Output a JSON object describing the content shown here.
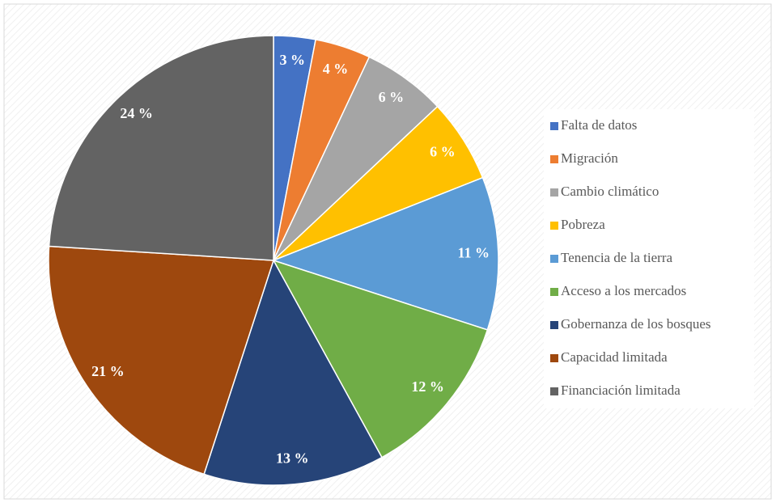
{
  "chart_data": {
    "type": "pie",
    "categories": [
      "Falta de datos",
      "Migración",
      "Cambio climático",
      "Pobreza",
      "Tenencia de la tierra",
      "Acceso a los mercados",
      "Gobernanza de los bosques",
      "Capacidad limitada",
      "Financiación limitada"
    ],
    "values": [
      3,
      4,
      6,
      6,
      11,
      12,
      13,
      21,
      24
    ],
    "value_labels": [
      "3 %",
      "4 %",
      "6 %",
      "6 %",
      "11 %",
      "12 %",
      "13 %",
      "21 %",
      "24 %"
    ],
    "colors": [
      "#4472c4",
      "#ed7d31",
      "#a5a5a5",
      "#ffc000",
      "#5b9bd5",
      "#70ad47",
      "#264478",
      "#9e480e",
      "#636363"
    ],
    "legend": "right"
  }
}
